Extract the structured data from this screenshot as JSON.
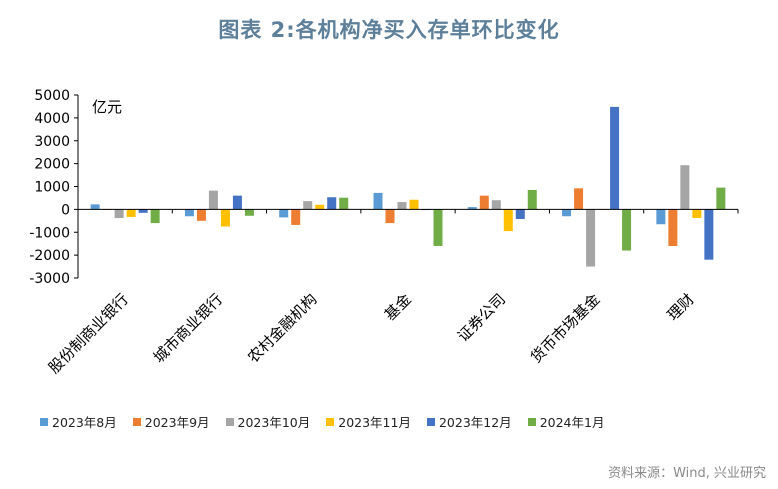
{
  "chart_data": {
    "type": "bar",
    "title": "图表 2:各机构净买入存单环比变化",
    "unit_label": "亿元",
    "source": "资料来源：Wind, 兴业研究",
    "ylim": [
      -3000,
      5000
    ],
    "yticks": [
      5000,
      4000,
      3000,
      2000,
      1000,
      0,
      -1000,
      -2000,
      -3000
    ],
    "categories": [
      "股份制商业银行",
      "城市商业银行",
      "农村金融机构",
      "基金",
      "证券公司",
      "货币市场基金",
      "理财"
    ],
    "series": [
      {
        "name": "2023年8月",
        "color": "#5b9bd5",
        "values": [
          220,
          -300,
          -350,
          720,
          100,
          -300,
          -650
        ]
      },
      {
        "name": "2023年9月",
        "color": "#ed7d31",
        "values": [
          -20,
          -500,
          -680,
          -600,
          600,
          920,
          -1600
        ]
      },
      {
        "name": "2023年10月",
        "color": "#a5a5a5",
        "values": [
          -380,
          820,
          360,
          320,
          400,
          -2500,
          1930
        ]
      },
      {
        "name": "2023年11月",
        "color": "#ffc000",
        "values": [
          -330,
          -750,
          200,
          420,
          -950,
          0,
          -380
        ]
      },
      {
        "name": "2023年12月",
        "color": "#4472c4",
        "values": [
          -150,
          600,
          530,
          -30,
          -420,
          4480,
          -2200
        ]
      },
      {
        "name": "2024年1月",
        "color": "#70ad47",
        "values": [
          -600,
          -280,
          510,
          -1600,
          850,
          -1800,
          950
        ]
      }
    ]
  }
}
